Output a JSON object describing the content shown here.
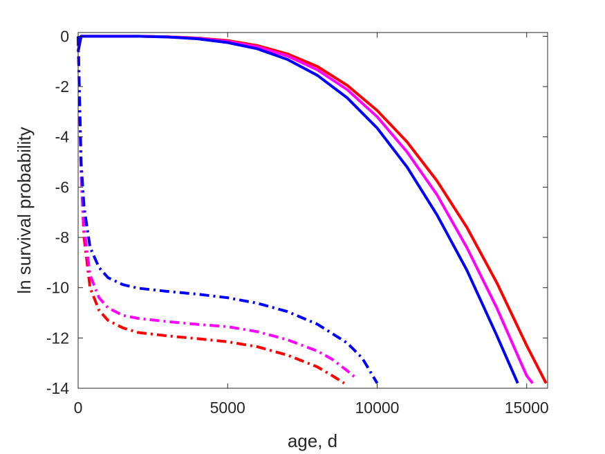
{
  "chart_data": {
    "type": "line",
    "title": "",
    "xlabel": "age, d",
    "ylabel": "ln survival probability",
    "xlim": [
      0,
      15700
    ],
    "ylim": [
      -14,
      0.15
    ],
    "xticks": [
      0,
      5000,
      10000,
      15000
    ],
    "xtick_labels": [
      "0",
      "5000",
      "10000",
      "15000"
    ],
    "yticks": [
      0,
      -2,
      -4,
      -6,
      -8,
      -10,
      -12,
      -14
    ],
    "ytick_labels": [
      "0",
      "-2",
      "-4",
      "-6",
      "-8",
      "-10",
      "-12",
      "-14"
    ],
    "grid": false,
    "legend": "none",
    "series": [
      {
        "color": "#ff0000",
        "style": "solid",
        "x": [
          0,
          100,
          1000,
          2000,
          3000,
          4000,
          5000,
          6000,
          7000,
          8000,
          9000,
          10000,
          11000,
          12000,
          13000,
          14000,
          15000,
          15650
        ],
        "y": [
          -0.6,
          0,
          0,
          0,
          -0.02,
          -0.07,
          -0.17,
          -0.37,
          -0.7,
          -1.2,
          -1.95,
          -2.95,
          -4.2,
          -5.75,
          -7.6,
          -9.8,
          -12.3,
          -13.8
        ]
      },
      {
        "color": "#ff00ff",
        "style": "solid",
        "x": [
          0,
          100,
          1000,
          2000,
          3000,
          4000,
          5000,
          6000,
          7000,
          8000,
          9000,
          10000,
          11000,
          12000,
          13000,
          14000,
          15000,
          15200
        ],
        "y": [
          -0.6,
          0,
          0,
          0,
          -0.02,
          -0.08,
          -0.2,
          -0.42,
          -0.78,
          -1.33,
          -2.12,
          -3.2,
          -4.6,
          -6.3,
          -8.4,
          -10.8,
          -13.5,
          -13.8
        ]
      },
      {
        "color": "#0000ff",
        "style": "solid",
        "x": [
          0,
          100,
          1000,
          2000,
          3000,
          4000,
          5000,
          6000,
          7000,
          8000,
          9000,
          10000,
          11000,
          12000,
          13000,
          14000,
          14700
        ],
        "y": [
          -0.6,
          0,
          0,
          0,
          -0.03,
          -0.1,
          -0.25,
          -0.5,
          -0.92,
          -1.55,
          -2.45,
          -3.65,
          -5.2,
          -7.1,
          -9.3,
          -11.9,
          -13.8
        ]
      },
      {
        "color": "#ff0000",
        "style": "dashdot",
        "x": [
          0,
          100,
          200,
          400,
          700,
          1000,
          1500,
          2000,
          3000,
          4000,
          5000,
          6000,
          7000,
          8000,
          8500,
          8900
        ],
        "y": [
          0,
          -5.5,
          -8.0,
          -10.0,
          -10.9,
          -11.3,
          -11.6,
          -11.78,
          -11.92,
          -12.03,
          -12.15,
          -12.35,
          -12.68,
          -13.15,
          -13.5,
          -13.8
        ]
      },
      {
        "color": "#ff00ff",
        "style": "dashdot",
        "x": [
          0,
          100,
          200,
          400,
          700,
          1000,
          1500,
          2000,
          3000,
          4000,
          5000,
          6000,
          7000,
          8000,
          8500,
          9000,
          9300
        ],
        "y": [
          0,
          -5.4,
          -7.6,
          -9.5,
          -10.4,
          -10.8,
          -11.1,
          -11.22,
          -11.35,
          -11.46,
          -11.55,
          -11.75,
          -12.07,
          -12.52,
          -12.85,
          -13.3,
          -13.6
        ]
      },
      {
        "color": "#0000ff",
        "style": "dashdot",
        "x": [
          0,
          100,
          200,
          400,
          700,
          1000,
          1500,
          2000,
          3000,
          4000,
          5000,
          6000,
          7000,
          8000,
          9000,
          9500,
          10000
        ],
        "y": [
          0,
          -5.0,
          -6.8,
          -8.4,
          -9.2,
          -9.6,
          -9.88,
          -10.02,
          -10.15,
          -10.26,
          -10.4,
          -10.62,
          -10.95,
          -11.45,
          -12.2,
          -12.8,
          -13.8
        ]
      }
    ]
  }
}
